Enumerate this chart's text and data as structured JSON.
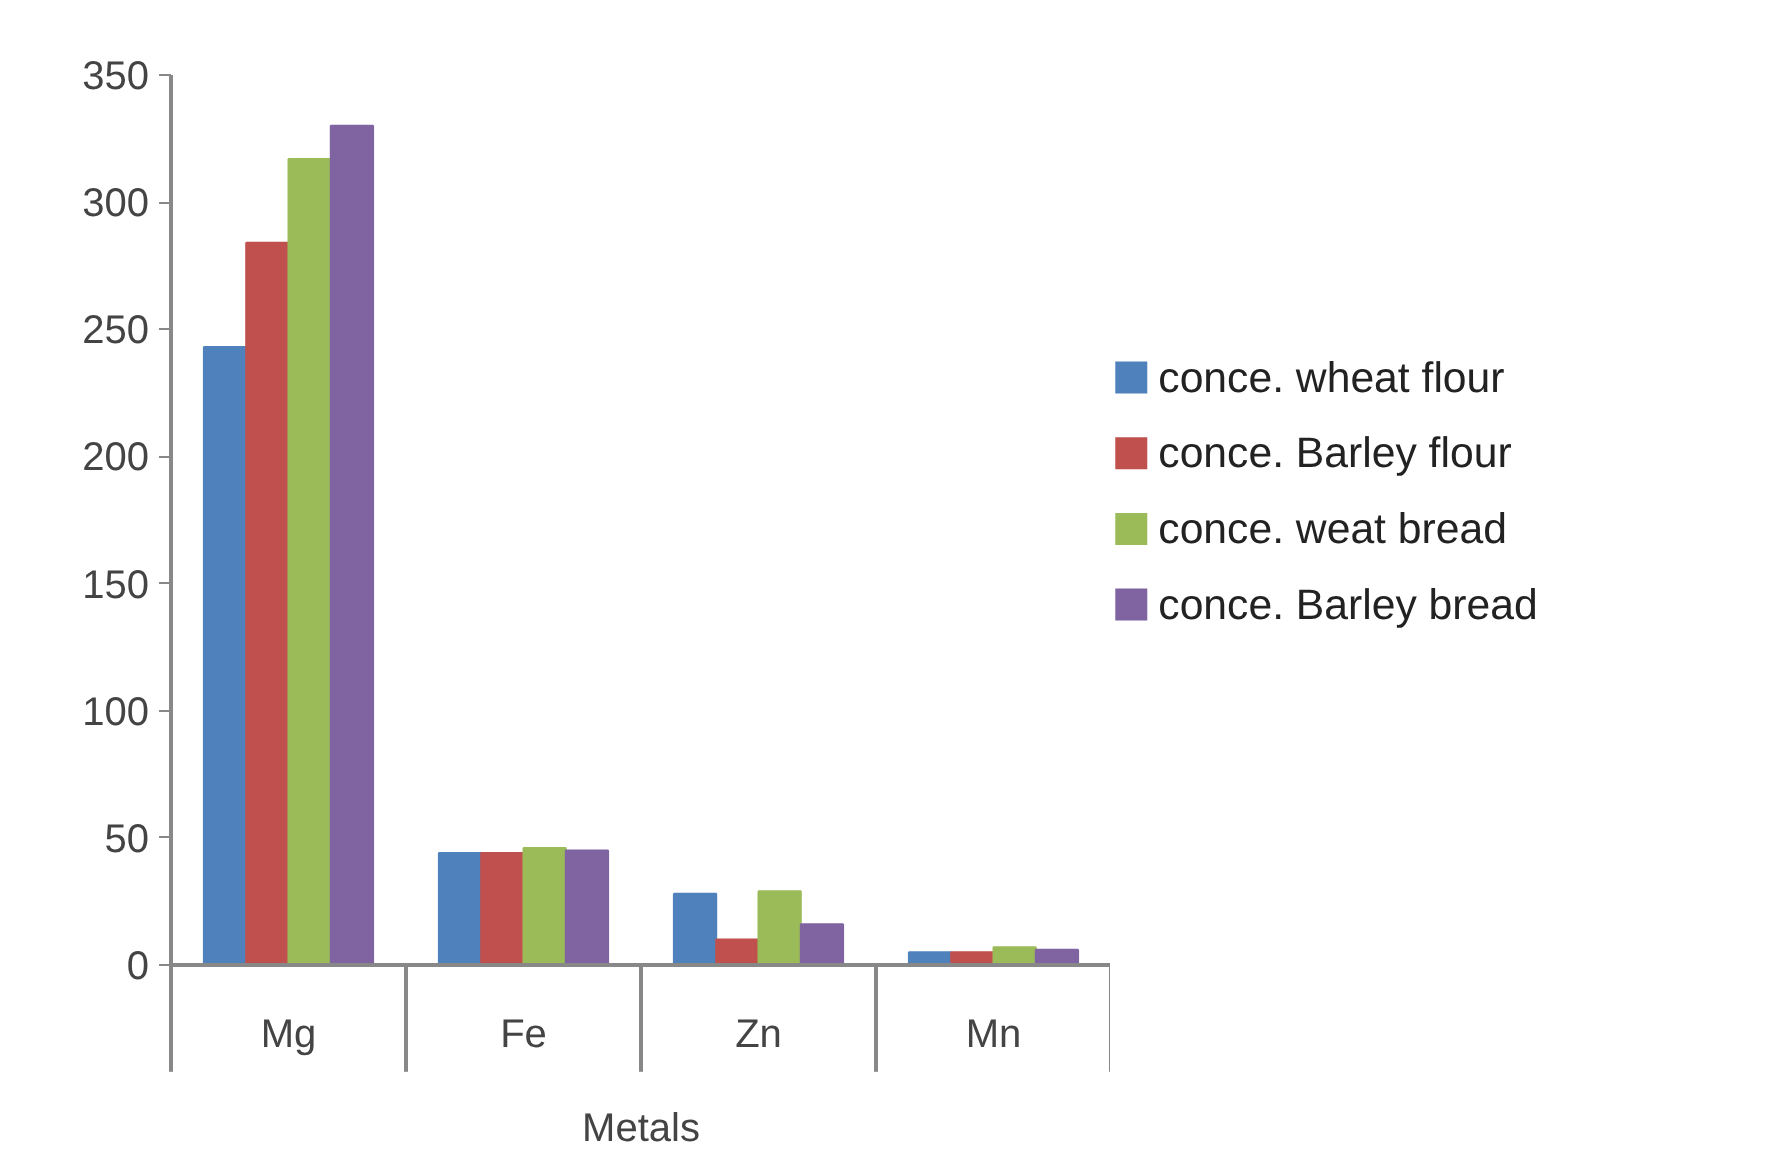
{
  "chart_data": {
    "type": "bar",
    "xlabel": "Metals",
    "categories": [
      "Mg",
      "Fe",
      "Zn",
      "Mn"
    ],
    "series": [
      {
        "name": "conce. wheat flour",
        "color": "#4f81bd",
        "values": [
          243,
          44,
          28,
          5
        ]
      },
      {
        "name": "conce. Barley flour",
        "color": "#c0504d",
        "values": [
          284,
          44,
          10,
          5
        ]
      },
      {
        "name": "conce. weat bread",
        "color": "#9bbb59",
        "values": [
          317,
          46,
          29,
          7
        ]
      },
      {
        "name": "conce. Barley bread",
        "color": "#8064a2",
        "values": [
          330,
          45,
          16,
          6
        ]
      }
    ],
    "ylim": [
      0,
      350
    ],
    "yticks": [
      0,
      50,
      100,
      150,
      200,
      250,
      300,
      350
    ],
    "grid": false,
    "legend": "right"
  }
}
